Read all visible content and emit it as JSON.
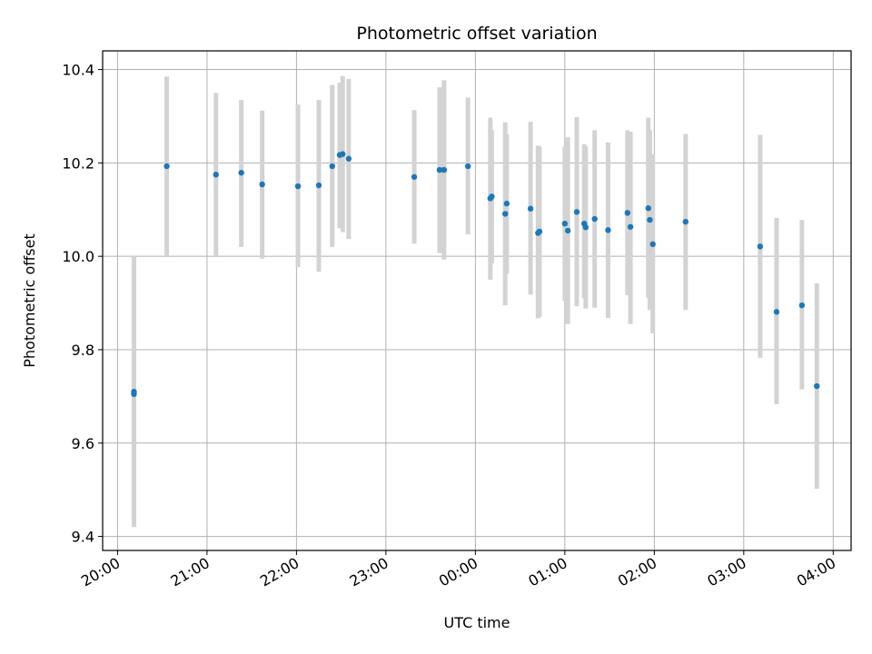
{
  "chart_data": {
    "type": "scatter",
    "title": "Photometric offset variation",
    "xlabel": "UTC time",
    "ylabel": "Photometric offset",
    "xlim": [
      "19:50",
      "04:12"
    ],
    "ylim": [
      9.37,
      10.44
    ],
    "grid": true,
    "x_ticks": [
      "20:00",
      "21:00",
      "22:00",
      "23:00",
      "00:00",
      "01:00",
      "02:00",
      "03:00",
      "04:00"
    ],
    "y_ticks": [
      "9.4",
      "9.6",
      "9.8",
      "10.0",
      "10.2",
      "10.4"
    ],
    "colors": {
      "marker": "#1f77b4",
      "errorbar": "#d3d3d3",
      "grid": "#b0b0b0"
    },
    "points": [
      {
        "t": "20:11",
        "y": 9.705,
        "err_low": 9.42,
        "err_high": 10.0
      },
      {
        "t": "20:11",
        "y": 9.71,
        "err_low": 9.43,
        "err_high": 9.99
      },
      {
        "t": "20:33",
        "y": 10.193,
        "err_low": 10.0,
        "err_high": 10.385
      },
      {
        "t": "21:06",
        "y": 10.175,
        "err_low": 10.0,
        "err_high": 10.35
      },
      {
        "t": "21:23",
        "y": 10.179,
        "err_low": 10.02,
        "err_high": 10.335
      },
      {
        "t": "21:37",
        "y": 10.154,
        "err_low": 9.995,
        "err_high": 10.312
      },
      {
        "t": "22:01",
        "y": 10.15,
        "err_low": 9.977,
        "err_high": 10.325
      },
      {
        "t": "22:15",
        "y": 10.152,
        "err_low": 9.967,
        "err_high": 10.335
      },
      {
        "t": "22:24",
        "y": 10.193,
        "err_low": 10.02,
        "err_high": 10.367
      },
      {
        "t": "22:29",
        "y": 10.217,
        "err_low": 10.06,
        "err_high": 10.372
      },
      {
        "t": "22:31",
        "y": 10.219,
        "err_low": 10.052,
        "err_high": 10.386
      },
      {
        "t": "22:35",
        "y": 10.209,
        "err_low": 10.037,
        "err_high": 10.38
      },
      {
        "t": "23:19",
        "y": 10.17,
        "err_low": 10.027,
        "err_high": 10.313
      },
      {
        "t": "23:36",
        "y": 10.185,
        "err_low": 10.007,
        "err_high": 10.362
      },
      {
        "t": "23:39",
        "y": 10.185,
        "err_low": 9.993,
        "err_high": 10.377
      },
      {
        "t": "23:55",
        "y": 10.193,
        "err_low": 10.047,
        "err_high": 10.34
      },
      {
        "t": "00:10",
        "y": 10.124,
        "err_low": 9.95,
        "err_high": 10.297
      },
      {
        "t": "00:11",
        "y": 10.128,
        "err_low": 9.985,
        "err_high": 10.27
      },
      {
        "t": "00:20",
        "y": 10.091,
        "err_low": 9.895,
        "err_high": 10.287
      },
      {
        "t": "00:21",
        "y": 10.113,
        "err_low": 9.963,
        "err_high": 10.262
      },
      {
        "t": "00:37",
        "y": 10.102,
        "err_low": 9.918,
        "err_high": 10.288
      },
      {
        "t": "00:42",
        "y": 10.05,
        "err_low": 9.867,
        "err_high": 10.237
      },
      {
        "t": "00:43",
        "y": 10.053,
        "err_low": 9.87,
        "err_high": 10.235
      },
      {
        "t": "01:00",
        "y": 10.07,
        "err_low": 9.905,
        "err_high": 10.235
      },
      {
        "t": "01:02",
        "y": 10.055,
        "err_low": 9.855,
        "err_high": 10.255
      },
      {
        "t": "01:08",
        "y": 10.095,
        "err_low": 9.893,
        "err_high": 10.298
      },
      {
        "t": "01:13",
        "y": 10.07,
        "err_low": 9.91,
        "err_high": 10.24
      },
      {
        "t": "01:14",
        "y": 10.062,
        "err_low": 9.888,
        "err_high": 10.236
      },
      {
        "t": "01:20",
        "y": 10.08,
        "err_low": 9.89,
        "err_high": 10.27
      },
      {
        "t": "01:29",
        "y": 10.056,
        "err_low": 9.868,
        "err_high": 10.244
      },
      {
        "t": "01:42",
        "y": 10.093,
        "err_low": 9.917,
        "err_high": 10.27
      },
      {
        "t": "01:44",
        "y": 10.063,
        "err_low": 9.855,
        "err_high": 10.267
      },
      {
        "t": "01:56",
        "y": 10.103,
        "err_low": 9.91,
        "err_high": 10.297
      },
      {
        "t": "01:57",
        "y": 10.078,
        "err_low": 9.885,
        "err_high": 10.27
      },
      {
        "t": "01:59",
        "y": 10.026,
        "err_low": 9.835,
        "err_high": 10.218
      },
      {
        "t": "02:21",
        "y": 10.074,
        "err_low": 9.885,
        "err_high": 10.262
      },
      {
        "t": "03:11",
        "y": 10.021,
        "err_low": 9.783,
        "err_high": 10.26
      },
      {
        "t": "03:22",
        "y": 9.881,
        "err_low": 9.683,
        "err_high": 10.082
      },
      {
        "t": "03:39",
        "y": 9.895,
        "err_low": 9.715,
        "err_high": 10.078
      },
      {
        "t": "03:49",
        "y": 9.722,
        "err_low": 9.502,
        "err_high": 9.942
      }
    ]
  }
}
